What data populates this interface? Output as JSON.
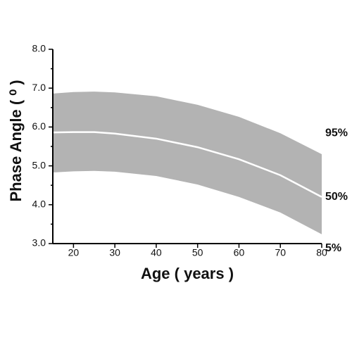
{
  "chart_data": {
    "type": "line",
    "x_label": "Age ( years )",
    "y_label": "Phase Angle ( ⁰ )",
    "x": [
      15,
      20,
      25,
      30,
      40,
      50,
      60,
      70,
      80
    ],
    "series": [
      {
        "name": "95%",
        "color": "#b3b3b3",
        "values": [
          6.86,
          6.9,
          6.91,
          6.89,
          6.79,
          6.57,
          6.26,
          5.84,
          5.3
        ]
      },
      {
        "name": "50%",
        "color": "#ffffff",
        "values": [
          5.86,
          5.87,
          5.87,
          5.83,
          5.7,
          5.48,
          5.17,
          4.76,
          4.2
        ]
      },
      {
        "name": "5%",
        "color": "#b3b3b3",
        "values": [
          4.83,
          4.86,
          4.87,
          4.85,
          4.74,
          4.52,
          4.2,
          3.8,
          3.24
        ]
      }
    ],
    "band_between": [
      0,
      2
    ],
    "xlim": [
      15,
      80
    ],
    "xticks": [
      20,
      30,
      40,
      50,
      60,
      70,
      80
    ],
    "ylim": [
      3,
      8
    ],
    "yticks": [
      {
        "value": 3,
        "label": "3.0"
      },
      {
        "value": 4,
        "label": "4.0"
      },
      {
        "value": 5,
        "label": "5.0"
      },
      {
        "value": 6,
        "label": "6.0"
      },
      {
        "value": 7,
        "label": "7.0"
      },
      {
        "value": 8,
        "label": "8.0"
      }
    ],
    "grid": false
  }
}
